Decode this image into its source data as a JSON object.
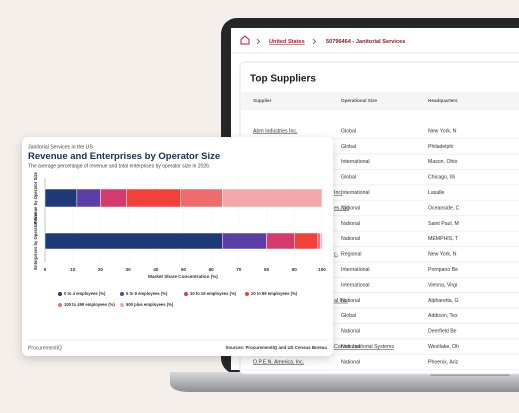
{
  "breadcrumb": [
    "United States",
    "50796464 - Janitorial Services"
  ],
  "table": {
    "title": "Top Suppliers",
    "columns": [
      "Supplier",
      "Operational Size",
      "Headquarters"
    ],
    "rows": [
      [
        "Abm Industries Inc.",
        "Global",
        "New York, N"
      ],
      [
        null,
        "Global",
        "Philadelphi"
      ],
      [
        null,
        "International",
        "Mason, Ohio"
      ],
      [
        null,
        "Global",
        "Chicago, Illi"
      ],
      [
        "Inc.",
        "International",
        "Lasalle"
      ],
      [
        "es, Llc",
        "National",
        "Oceanside, C"
      ],
      [
        null,
        "National",
        "Saint Paul, M"
      ],
      [
        null,
        "National",
        "MEMPHIS, T"
      ],
      [
        "c.",
        "Regional",
        "New York, N"
      ],
      [
        null,
        "International",
        "Pompano Be"
      ],
      [
        null,
        "International",
        "Vienna, Virgi"
      ],
      [
        "al Inc.",
        "National",
        "Alpharetta, G"
      ],
      [
        null,
        "Global",
        "Addison, Tex"
      ],
      [
        null,
        "National",
        "Deerfield Be"
      ],
      [
        "Corvus Janitorial Systems",
        "National",
        "Westlake, Oh"
      ],
      [
        "O.P.E.N. America, Inc.",
        "National",
        "Phoenix, Ariz"
      ]
    ]
  },
  "chart_data": {
    "type": "bar",
    "stacked": true,
    "orientation": "horizontal",
    "eyebrow": "Janitorial Services in the US",
    "title": "Revenue and Enterprises by Operator Size",
    "subtitle": "The average percentage of revenue and total enterprises by operator size in 2026.",
    "categories": [
      "Revenue by Operator Size",
      "Enterprises by Operator Size"
    ],
    "series": [
      {
        "name": "0 to 4 employees (%)",
        "color": "#1e3a78",
        "values": [
          11.5,
          64
        ]
      },
      {
        "name": "5 to 9 employees (%)",
        "color": "#5a3ea6",
        "values": [
          8.5,
          16
        ]
      },
      {
        "name": "10 to 19 employees (%)",
        "color": "#d43a6a",
        "values": [
          9.5,
          10
        ]
      },
      {
        "name": "20 to 99 employees (%)",
        "color": "#f2413b",
        "values": [
          19.5,
          8.5
        ]
      },
      {
        "name": "100 to 499 employees (%)",
        "color": "#ef6c6c",
        "values": [
          15,
          1
        ]
      },
      {
        "name": "500 plus employees (%)",
        "color": "#f5a8a8",
        "values": [
          36,
          0.5
        ]
      }
    ],
    "xlim": [
      0,
      100
    ],
    "xticks": [
      0,
      10,
      20,
      30,
      40,
      50,
      60,
      70,
      80,
      90,
      100
    ],
    "xlabel": "Market Share Concentration (%)",
    "grid": true
  },
  "footer": {
    "brand": "ProcurementIQ",
    "sources": "Sources: ProcurementIQ and US Census Bureau"
  }
}
